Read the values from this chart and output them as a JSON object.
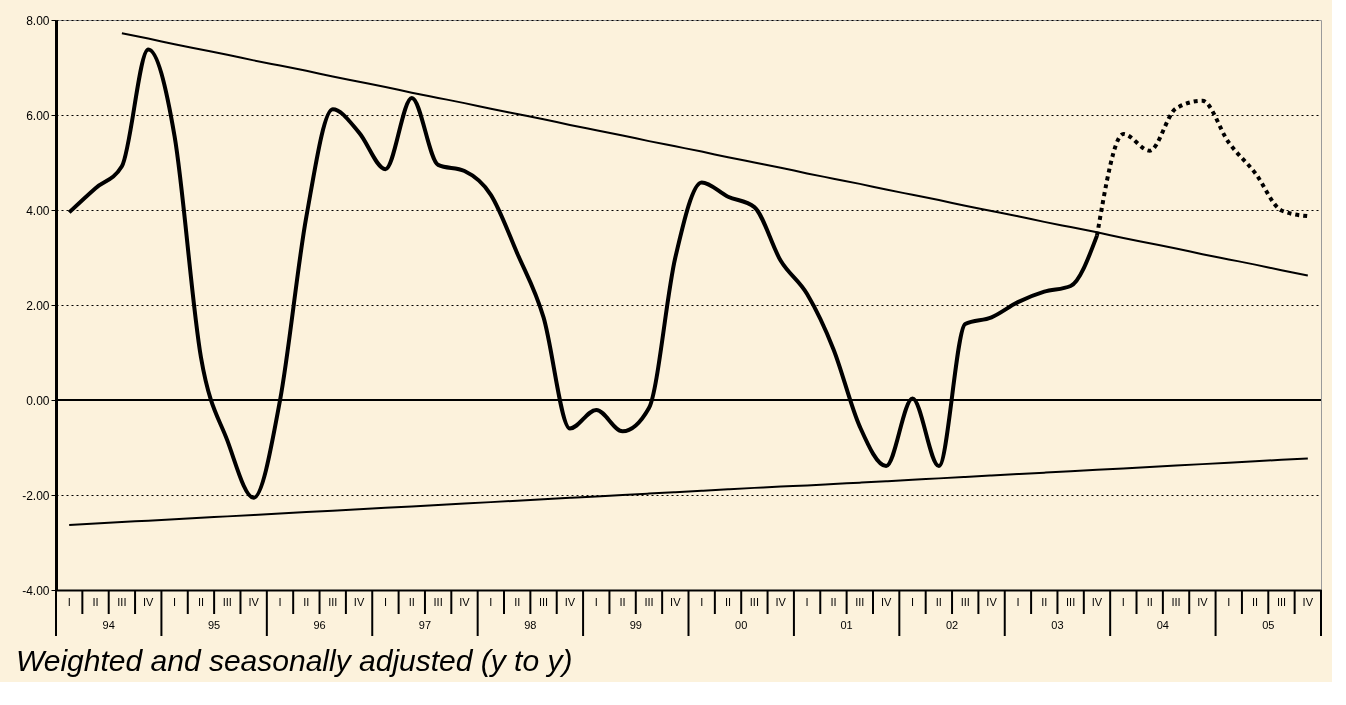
{
  "chart_data": {
    "type": "line",
    "ylim": [
      -4,
      8
    ],
    "yticks": [
      {
        "value": -4,
        "label": "-4.00"
      },
      {
        "value": -2,
        "label": "-2.00"
      },
      {
        "value": 0,
        "label": "0.00"
      },
      {
        "value": 2,
        "label": "2.00"
      },
      {
        "value": 4,
        "label": "4.00"
      },
      {
        "value": 6,
        "label": "6.00"
      },
      {
        "value": 8,
        "label": "8.00"
      }
    ],
    "categories": [
      "I",
      "II",
      "III",
      "IV",
      "I",
      "II",
      "III",
      "IV",
      "I",
      "II",
      "III",
      "IV",
      "I",
      "II",
      "III",
      "IV",
      "I",
      "II",
      "III",
      "IV",
      "I",
      "II",
      "III",
      "IV",
      "I",
      "II",
      "III",
      "IV",
      "I",
      "II",
      "III",
      "IV",
      "I",
      "II",
      "III",
      "IV",
      "I",
      "II",
      "III",
      "IV",
      "I",
      "II",
      "III",
      "IV",
      "I",
      "II",
      "III",
      "IV"
    ],
    "grid": "y",
    "ref_lines": [
      {
        "axis": "y",
        "value": 0,
        "color": "#000000",
        "line_style": "solid"
      }
    ],
    "annotations": [
      "94",
      "95",
      "96",
      "97",
      "98",
      "99",
      "00",
      "01",
      "02",
      "03",
      "04",
      "05",
      "Weighted and seasonally adjusted (y to y)"
    ],
    "series": [
      {
        "color": "#000000",
        "line_style": "solid",
        "values": [
          3.95,
          4.46,
          4.92,
          7.38,
          5.55,
          0.9,
          -0.85,
          -2.06,
          -0.01,
          3.86,
          6.12,
          5.63,
          4.86,
          6.36,
          4.95,
          4.82,
          4.32,
          3.09,
          1.74,
          -0.6,
          -0.21,
          -0.66,
          -0.17,
          3.0,
          4.58,
          4.28,
          4.06,
          2.93,
          2.23,
          1.07,
          -0.56,
          -1.39,
          0.03,
          -1.39,
          1.6,
          1.74,
          2.06,
          2.28,
          2.4,
          3.46,
          null,
          null,
          null,
          null,
          null,
          null,
          null,
          null
        ]
      },
      {
        "color": "#000000",
        "line_style": "dashed",
        "values": [
          null,
          null,
          null,
          null,
          null,
          null,
          null,
          null,
          null,
          null,
          null,
          null,
          null,
          null,
          null,
          null,
          null,
          null,
          null,
          null,
          null,
          null,
          null,
          null,
          null,
          null,
          null,
          null,
          null,
          null,
          null,
          null,
          null,
          null,
          null,
          null,
          null,
          null,
          null,
          3.46,
          5.6,
          5.25,
          6.14,
          6.3,
          5.42,
          4.78,
          3.99,
          3.87
        ]
      },
      {
        "color": "#000000",
        "line_style": "solid",
        "values": [
          null,
          null,
          7.72,
          7.61,
          7.49,
          7.38,
          7.27,
          7.15,
          7.04,
          6.93,
          6.81,
          6.7,
          6.59,
          6.47,
          6.36,
          6.25,
          6.13,
          6.02,
          5.91,
          5.79,
          5.68,
          5.57,
          5.45,
          5.34,
          5.23,
          5.11,
          5.0,
          4.89,
          4.77,
          4.66,
          4.55,
          4.43,
          4.32,
          4.21,
          4.09,
          3.98,
          3.87,
          3.75,
          3.64,
          3.53,
          3.41,
          3.3,
          3.19,
          3.07,
          2.96,
          2.85,
          2.73,
          2.62
        ]
      },
      {
        "color": "#000000",
        "line_style": "solid",
        "values": [
          -2.63,
          -2.6,
          -2.57,
          -2.54,
          -2.51,
          -2.48,
          -2.45,
          -2.42,
          -2.39,
          -2.36,
          -2.33,
          -2.3,
          -2.27,
          -2.24,
          -2.21,
          -2.18,
          -2.15,
          -2.12,
          -2.09,
          -2.06,
          -2.03,
          -2.0,
          -1.97,
          -1.94,
          -1.91,
          -1.88,
          -1.85,
          -1.82,
          -1.8,
          -1.77,
          -1.74,
          -1.71,
          -1.68,
          -1.65,
          -1.62,
          -1.59,
          -1.56,
          -1.53,
          -1.5,
          -1.47,
          -1.44,
          -1.41,
          -1.38,
          -1.35,
          -1.32,
          -1.29,
          -1.26,
          -1.23
        ]
      }
    ]
  }
}
